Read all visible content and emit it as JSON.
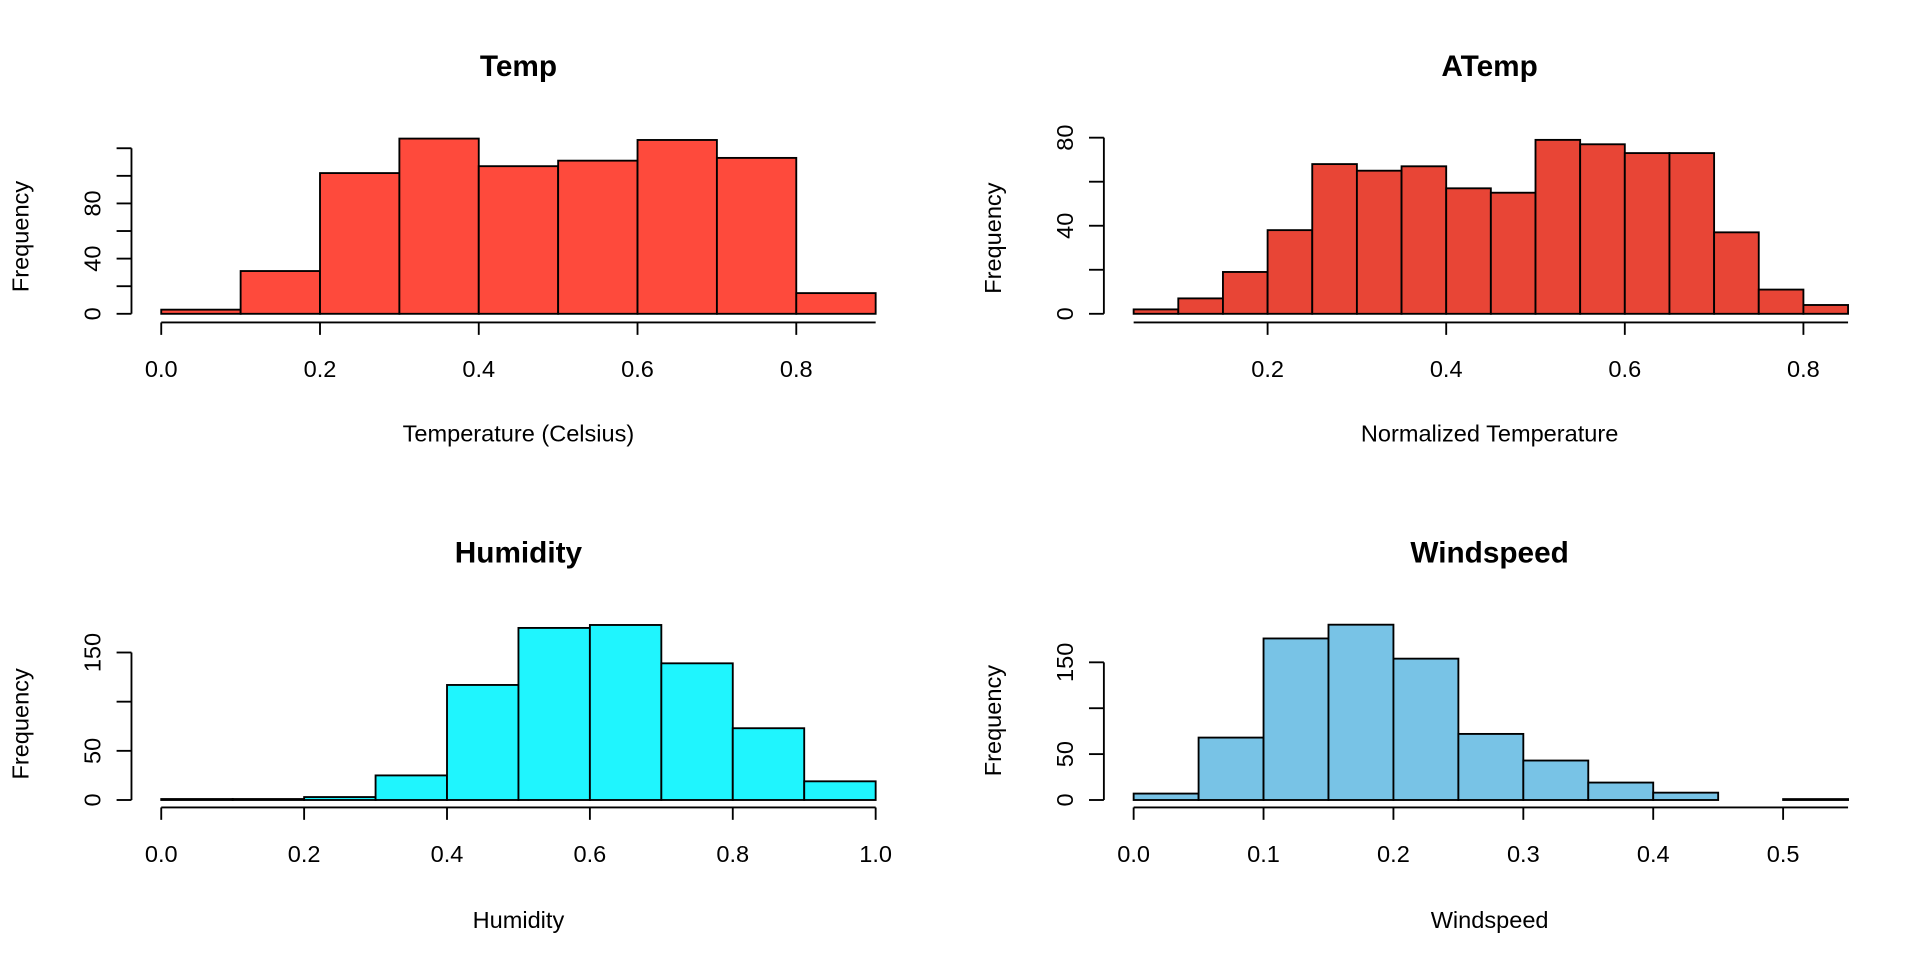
{
  "chart_data": [
    {
      "type": "histogram",
      "title": "Temp",
      "xlabel": "Temperature (Celsius)",
      "ylabel": "Frequency",
      "bins": [
        0,
        0.1,
        0.2,
        0.3,
        0.4,
        0.5,
        0.6,
        0.7,
        0.8,
        0.9
      ],
      "values": [
        3,
        31,
        102,
        127,
        107,
        111,
        126,
        113,
        15
      ],
      "color": "#fe4a3c",
      "xlim": [
        0,
        0.9
      ],
      "ylim": [
        0,
        130
      ],
      "xticks": [
        {
          "value": 0,
          "label": "0.0"
        },
        0.2,
        0.4,
        0.6,
        0.8
      ],
      "yticks": [
        0,
        40,
        80
      ],
      "yticks_minor": [
        20,
        60,
        100,
        120
      ]
    },
    {
      "type": "histogram",
      "title": "ATemp",
      "xlabel": "Normalized Temperature",
      "ylabel": "Frequency",
      "bins": [
        0.05,
        0.1,
        0.15,
        0.2,
        0.25,
        0.3,
        0.35,
        0.4,
        0.45,
        0.5,
        0.55,
        0.6,
        0.65,
        0.7,
        0.75,
        0.8,
        0.85
      ],
      "values": [
        2,
        7,
        19,
        38,
        68,
        65,
        67,
        57,
        55,
        79,
        77,
        73,
        73,
        37,
        11,
        4
      ],
      "color": "#e84536",
      "xlim": [
        0.05,
        0.85
      ],
      "ylim": [
        0,
        80
      ],
      "xticks": [
        0.2,
        0.4,
        0.6,
        0.8
      ],
      "yticks": [
        0,
        40,
        80
      ],
      "yticks_minor": [
        20,
        60
      ]
    },
    {
      "type": "histogram",
      "title": "Humidity",
      "xlabel": "Humidity",
      "ylabel": "Frequency",
      "bins": [
        0,
        0.1,
        0.2,
        0.3,
        0.4,
        0.5,
        0.6,
        0.7,
        0.8,
        0.9,
        1
      ],
      "values": [
        1,
        1,
        3,
        25,
        117,
        175,
        178,
        139,
        73,
        19
      ],
      "color": "#1ff5fe",
      "xlim": [
        0,
        1
      ],
      "ylim": [
        0,
        180
      ],
      "xticks": [
        {
          "value": 0,
          "label": "0.0"
        },
        0.2,
        0.4,
        0.6,
        0.8,
        {
          "value": 1,
          "label": "1.0"
        }
      ],
      "yticks": [
        0,
        50,
        150
      ],
      "yticks_minor": [
        100
      ]
    },
    {
      "type": "histogram",
      "title": "Windspeed",
      "xlabel": "Windspeed",
      "ylabel": "Frequency",
      "bins": [
        0,
        0.05,
        0.1,
        0.15,
        0.2,
        0.25,
        0.3,
        0.35,
        0.4,
        0.45,
        0.5,
        0.55
      ],
      "values": [
        7,
        68,
        176,
        191,
        154,
        72,
        43,
        19,
        8,
        0,
        1
      ],
      "color": "#78c3e6",
      "xlim": [
        0,
        0.55
      ],
      "ylim": [
        0,
        200
      ],
      "xticks": [
        {
          "value": 0,
          "label": "0.0"
        },
        0.1,
        0.2,
        0.3,
        0.4,
        0.5
      ],
      "yticks": [
        0,
        50,
        150
      ],
      "yticks_minor": [
        100
      ]
    }
  ]
}
